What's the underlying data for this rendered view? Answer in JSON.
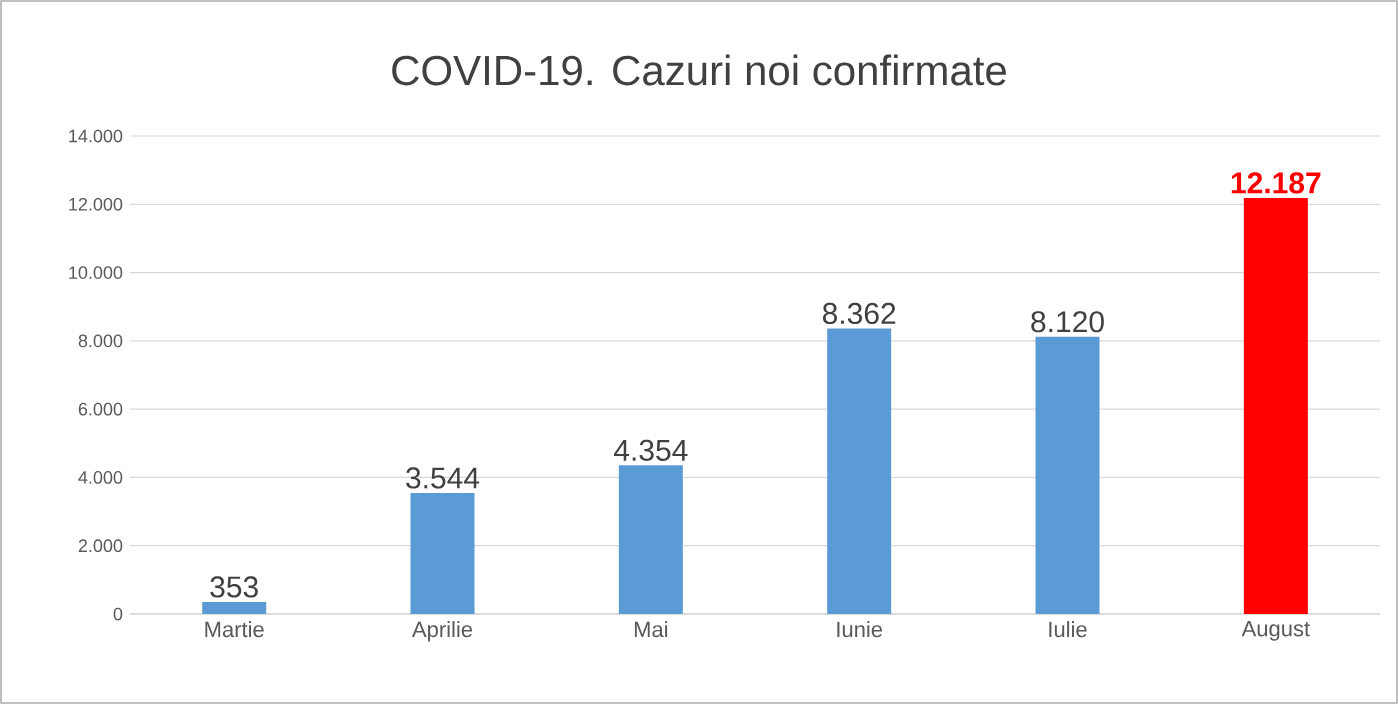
{
  "chart_data": {
    "type": "bar",
    "title": "COVID-19. Cazuri noi confirmate",
    "categories": [
      "Martie",
      "Aprilie",
      "Mai",
      "Iunie",
      "Iulie",
      "August"
    ],
    "values": [
      353,
      3544,
      4354,
      8362,
      8120,
      12187
    ],
    "value_labels": [
      "353",
      "3.544",
      "4.354",
      "8.362",
      "8.120",
      "12.187"
    ],
    "color": "#5b9bd5",
    "colors": [
      "#5b9bd5",
      "#5b9bd5",
      "#5b9bd5",
      "#5b9bd5",
      "#5b9bd5",
      "#ff0000"
    ],
    "ylim": [
      0,
      14000
    ],
    "yticks": [
      0,
      {
        "value": 2000,
        "label": "2.000"
      },
      {
        "value": 4000,
        "label": "4.000"
      },
      {
        "value": 6000,
        "label": "6.000"
      },
      {
        "value": 8000,
        "label": "8.000"
      },
      {
        "value": 10000,
        "label": "10.000"
      },
      {
        "value": 12000,
        "label": "12.000"
      },
      {
        "value": 14000,
        "label": "14.000"
      }
    ],
    "grid": "y"
  }
}
